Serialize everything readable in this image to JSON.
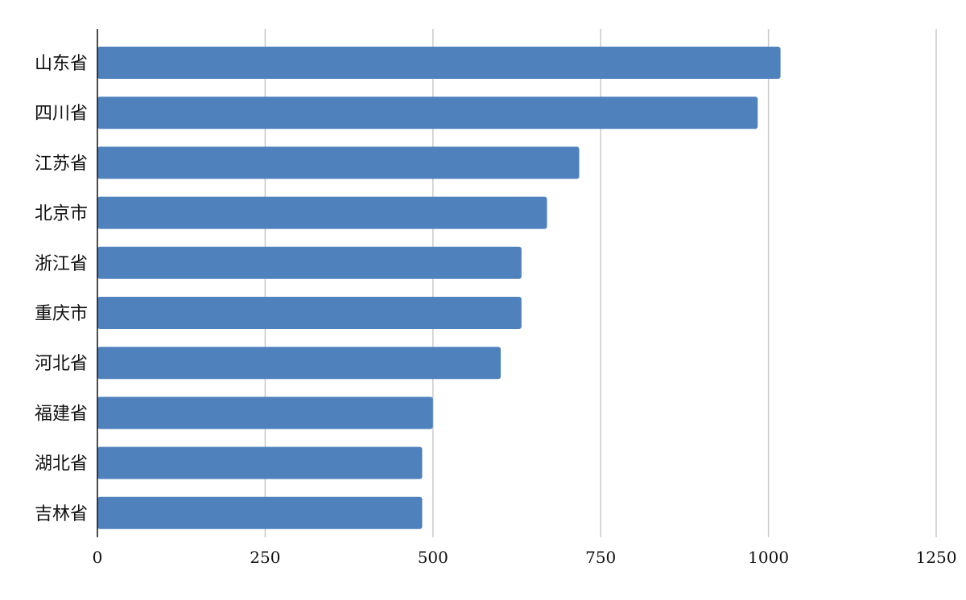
{
  "chart_data": {
    "type": "bar",
    "orientation": "horizontal",
    "categories": [
      "山东省",
      "四川省",
      "江苏省",
      "北京市",
      "浙江省",
      "重庆市",
      "河北省",
      "福建省",
      "湖北省",
      "吉林省"
    ],
    "values": [
      1018,
      984,
      718,
      670,
      632,
      632,
      601,
      500,
      484,
      484
    ],
    "title": "",
    "xlabel": "",
    "ylabel": "",
    "xlim": [
      0,
      1250
    ],
    "xticks": [
      0,
      250,
      500,
      750,
      1000,
      1250
    ],
    "grid": "vertical",
    "legend": "none",
    "bar_color": "#4f81bd"
  }
}
